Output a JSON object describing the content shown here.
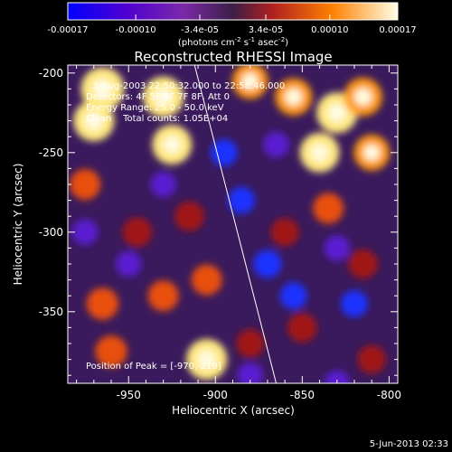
{
  "colorbar": {
    "tick_labels": [
      "-0.00017",
      "-0.00010",
      "-3.4e-05",
      "3.4e-05",
      "0.00010",
      "0.00017"
    ],
    "tick_values": [
      -0.00017,
      -0.0001,
      -3.4e-05,
      3.4e-05,
      0.0001,
      0.00017
    ],
    "range": [
      -0.00017,
      0.00017
    ],
    "unit_label": "(photons cm",
    "unit_exp1": "-2",
    "unit_mid": " s",
    "unit_exp2": "-1",
    "unit_tail": " asec",
    "unit_exp3": "-2",
    "unit_close": ")"
  },
  "title": "Reconstructed RHESSI Image",
  "annotations": {
    "time_range": "1-Aug-2003 22:50:32.000 to 22:58:46.000",
    "detectors": "Detectors: 4F 5F 6F 7F 8F, Att 0",
    "energy_range": "Energy Range: 25.0 - 50.0 keV",
    "method": "Clean    Total counts: 1.05E+04",
    "peak_position": "Position of Peak = [-970,-219]"
  },
  "timestamp": "5-Jun-2013 02:33",
  "chart_data": {
    "type": "heatmap",
    "title": "Reconstructed RHESSI Image",
    "xlabel": "Heliocentric X (arcsec)",
    "ylabel": "Heliocentric Y (arcsec)",
    "xlim": [
      -985,
      -795
    ],
    "ylim": [
      -395,
      -195
    ],
    "xticks": [
      -950,
      -900,
      -850,
      -800
    ],
    "xtick_labels": [
      "-950",
      "-900",
      "-850",
      "-800"
    ],
    "yticks": [
      -200,
      -250,
      -300,
      -350
    ],
    "ytick_labels": [
      "-200",
      "-250",
      "-300",
      "-350"
    ],
    "limb_line": [
      [
        -912,
        -195
      ],
      [
        -865,
        -395
      ]
    ],
    "blobs": [
      {
        "x": -965,
        "y": -210,
        "v": 1.0
      },
      {
        "x": -930,
        "y": -215,
        "v": 0.9
      },
      {
        "x": -925,
        "y": -245,
        "v": 0.85
      },
      {
        "x": -970,
        "y": -230,
        "v": 0.9
      },
      {
        "x": -975,
        "y": -270,
        "v": 0.5
      },
      {
        "x": -945,
        "y": -300,
        "v": 0.45
      },
      {
        "x": -965,
        "y": -345,
        "v": 0.55
      },
      {
        "x": -930,
        "y": -340,
        "v": 0.5
      },
      {
        "x": -960,
        "y": -375,
        "v": 0.55
      },
      {
        "x": -905,
        "y": -380,
        "v": 0.9
      },
      {
        "x": -905,
        "y": -330,
        "v": 0.5
      },
      {
        "x": -915,
        "y": -290,
        "v": 0.45
      },
      {
        "x": -880,
        "y": -205,
        "v": 0.7
      },
      {
        "x": -855,
        "y": -215,
        "v": 0.75
      },
      {
        "x": -830,
        "y": -225,
        "v": 0.9
      },
      {
        "x": -840,
        "y": -250,
        "v": 0.85
      },
      {
        "x": -815,
        "y": -215,
        "v": 0.8
      },
      {
        "x": -810,
        "y": -250,
        "v": 0.7
      },
      {
        "x": -860,
        "y": -300,
        "v": 0.4
      },
      {
        "x": -835,
        "y": -285,
        "v": 0.5
      },
      {
        "x": -815,
        "y": -320,
        "v": 0.45
      },
      {
        "x": -850,
        "y": -360,
        "v": 0.45
      },
      {
        "x": -810,
        "y": -380,
        "v": 0.4
      },
      {
        "x": -880,
        "y": -370,
        "v": 0.4
      },
      {
        "x": -895,
        "y": -250,
        "v": -0.35
      },
      {
        "x": -885,
        "y": -280,
        "v": -0.35
      },
      {
        "x": -870,
        "y": -320,
        "v": -0.4
      },
      {
        "x": -855,
        "y": -340,
        "v": -0.35
      },
      {
        "x": -830,
        "y": -310,
        "v": -0.3
      },
      {
        "x": -820,
        "y": -345,
        "v": -0.35
      },
      {
        "x": -865,
        "y": -245,
        "v": -0.3
      },
      {
        "x": -950,
        "y": -320,
        "v": -0.3
      },
      {
        "x": -975,
        "y": -300,
        "v": -0.3
      },
      {
        "x": -930,
        "y": -270,
        "v": -0.3
      },
      {
        "x": -880,
        "y": -390,
        "v": -0.3
      },
      {
        "x": -830,
        "y": -395,
        "v": -0.3
      }
    ],
    "legend_colormap": [
      "#0000ff",
      "#5a00d4",
      "#8a40b4",
      "#c8323c",
      "#ff8000",
      "#ffd040",
      "#ffffe6"
    ]
  }
}
